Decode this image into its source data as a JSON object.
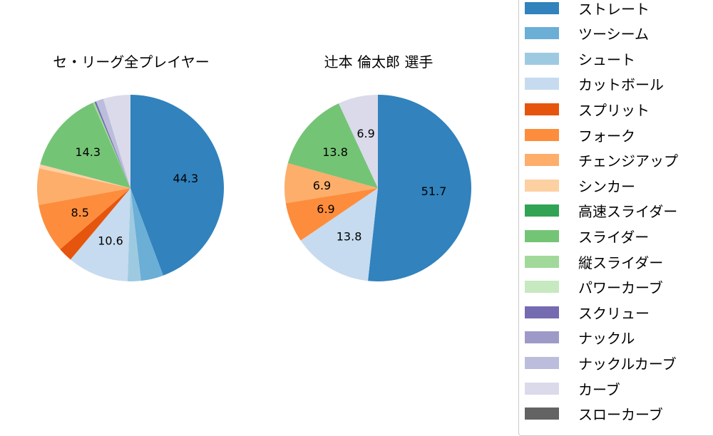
{
  "chart_data": [
    {
      "type": "pie",
      "title": "セ・リーグ全プレイヤー",
      "start_angle": 90,
      "direction": "clockwise",
      "categories": [
        "ストレート",
        "ツーシーム",
        "シュート",
        "カットボール",
        "スプリット",
        "フォーク",
        "チェンジアップ",
        "シンカー",
        "スライダー",
        "縦スライダー",
        "スクリュー",
        "ナックルカーブ",
        "カーブ"
      ],
      "values": [
        44.3,
        3.9,
        2.3,
        10.6,
        2.5,
        8.5,
        6.3,
        0.7,
        14.3,
        0.3,
        0.3,
        1.3,
        4.7
      ],
      "labels_shown": [
        "44.3",
        "10.6",
        "8.5",
        "14.3"
      ]
    },
    {
      "type": "pie",
      "title": "辻本 倫太郎  選手",
      "start_angle": 90,
      "direction": "clockwise",
      "categories": [
        "ストレート",
        "カットボール",
        "フォーク",
        "チェンジアップ",
        "スライダー",
        "カーブ"
      ],
      "values": [
        51.7,
        13.8,
        6.9,
        6.9,
        13.8,
        6.9
      ],
      "labels_shown": [
        "51.7",
        "13.8",
        "6.9",
        "6.9",
        "13.8",
        "6.9"
      ]
    }
  ],
  "titles": {
    "left": "セ・リーグ全プレイヤー",
    "right": "辻本 倫太郎  選手"
  },
  "legend": {
    "items": [
      {
        "label": "ストレート",
        "color": "#3182bd"
      },
      {
        "label": "ツーシーム",
        "color": "#6baed6"
      },
      {
        "label": "シュート",
        "color": "#9ecae1"
      },
      {
        "label": "カットボール",
        "color": "#c6dbef"
      },
      {
        "label": "スプリット",
        "color": "#e6550d"
      },
      {
        "label": "フォーク",
        "color": "#fd8d3c"
      },
      {
        "label": "チェンジアップ",
        "color": "#fdae6b"
      },
      {
        "label": "シンカー",
        "color": "#fdd0a2"
      },
      {
        "label": "高速スライダー",
        "color": "#31a354"
      },
      {
        "label": "スライダー",
        "color": "#74c476"
      },
      {
        "label": "縦スライダー",
        "color": "#a1d99b"
      },
      {
        "label": "パワーカーブ",
        "color": "#c7e9c0"
      },
      {
        "label": "スクリュー",
        "color": "#756bb1"
      },
      {
        "label": "ナックル",
        "color": "#9e9ac8"
      },
      {
        "label": "ナックルカーブ",
        "color": "#bcbddc"
      },
      {
        "label": "カーブ",
        "color": "#dadaeb"
      },
      {
        "label": "スローカーブ",
        "color": "#636363"
      }
    ]
  }
}
